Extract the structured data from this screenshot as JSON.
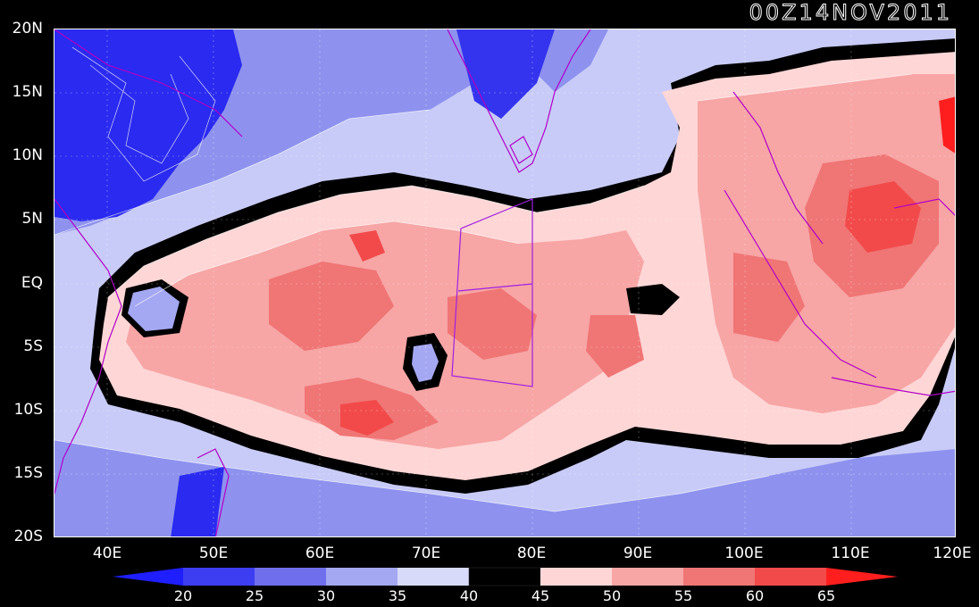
{
  "timestamp": "00Z14NOV2011",
  "axes": {
    "lat_labels": [
      "20N",
      "15N",
      "10N",
      "5N",
      "EQ",
      "5S",
      "10S",
      "15S",
      "20S"
    ],
    "lon_labels": [
      "40E",
      "50E",
      "60E",
      "70E",
      "80E",
      "90E",
      "100E",
      "110E",
      "120E"
    ],
    "lat_range": [
      -20,
      20
    ],
    "lon_range": [
      35,
      120
    ]
  },
  "colorbar": {
    "levels": [
      "20",
      "25",
      "30",
      "35",
      "40",
      "45",
      "50",
      "55",
      "60",
      "65"
    ],
    "colors": [
      "#1e1eff",
      "#3d3df2",
      "#6f6fee",
      "#a4a7f2",
      "#d8dafa",
      "#000000",
      "#ffd6d6",
      "#f7a5a5",
      "#f07575",
      "#f24a4a",
      "#ff1e1e"
    ],
    "low_arrow_color": "#1e1eff",
    "high_arrow_color": "#ff1e1e"
  },
  "colors": {
    "background": "#000000",
    "coastline": "#b000c8",
    "box": "#a020e0"
  }
}
